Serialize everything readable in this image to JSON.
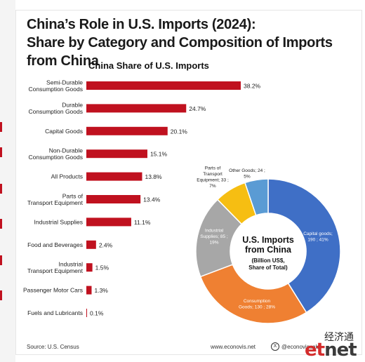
{
  "title_line1": "China’s Role in U.S. Imports (2024):",
  "title_line2": "Share by Category and Composition of Imports from China",
  "source": "Source: U.S. Census",
  "website": "www.econovis.net",
  "handle": "@econovisuals",
  "watermark_cn": "经济通",
  "watermark_logo_a": "et",
  "watermark_logo_b": "net",
  "chart_data": [
    {
      "type": "bar",
      "orientation": "horizontal",
      "title": "China Share of U.S. Imports",
      "categories": [
        [
          "Semi-Durable",
          "Consumption Goods"
        ],
        [
          "Durable",
          "Consumption Goods"
        ],
        [
          "Capital Goods"
        ],
        [
          "Non-Durable",
          "Consumption Goods"
        ],
        [
          "All Products"
        ],
        [
          "Parts of",
          "Transport Equipment"
        ],
        [
          "Industrial Supplies"
        ],
        [
          "Food and Beverages"
        ],
        [
          "Industrial",
          "Transport Equipment"
        ],
        [
          "Passenger Motor Cars"
        ],
        [
          "Fuels and Lubricants"
        ]
      ],
      "values": [
        38.2,
        24.7,
        20.1,
        15.1,
        13.8,
        13.4,
        11.1,
        2.4,
        1.5,
        1.3,
        0.1
      ],
      "value_labels": [
        "38.2%",
        "24.7%",
        "20.1%",
        "15.1%",
        "13.8%",
        "13.4%",
        "11.1%",
        "2.4%",
        "1.5%",
        "1.3%",
        "0.1%"
      ],
      "bar_color": "#c0111f",
      "xlim": [
        0,
        40
      ],
      "grid": false
    },
    {
      "type": "pie",
      "variant": "donut",
      "center_label": [
        "U.S. Imports",
        "from China"
      ],
      "center_sublabel": [
        "(Billion US$,",
        "Share of Total)"
      ],
      "slices": [
        {
          "label": [
            "Capital goods;",
            "190 ; 41%"
          ],
          "value": 190,
          "share": 41,
          "color": "#3f6fc6"
        },
        {
          "label": [
            "Consumption",
            "Goods; 130 ; 28%"
          ],
          "value": 130,
          "share": 28,
          "color": "#ef8032"
        },
        {
          "label": [
            "Industrial",
            "Supplies; 85 ;",
            "19%"
          ],
          "value": 85,
          "share": 19,
          "color": "#a7a7a7"
        },
        {
          "label": [
            "Parts of",
            "Transport",
            "Equipment; 33 ;",
            "7%"
          ],
          "value": 33,
          "share": 7,
          "color": "#f6be12"
        },
        {
          "label": [
            "Other Goods; 24 ;",
            "5%"
          ],
          "value": 24,
          "share": 5,
          "color": "#5a9bd4"
        }
      ]
    }
  ]
}
